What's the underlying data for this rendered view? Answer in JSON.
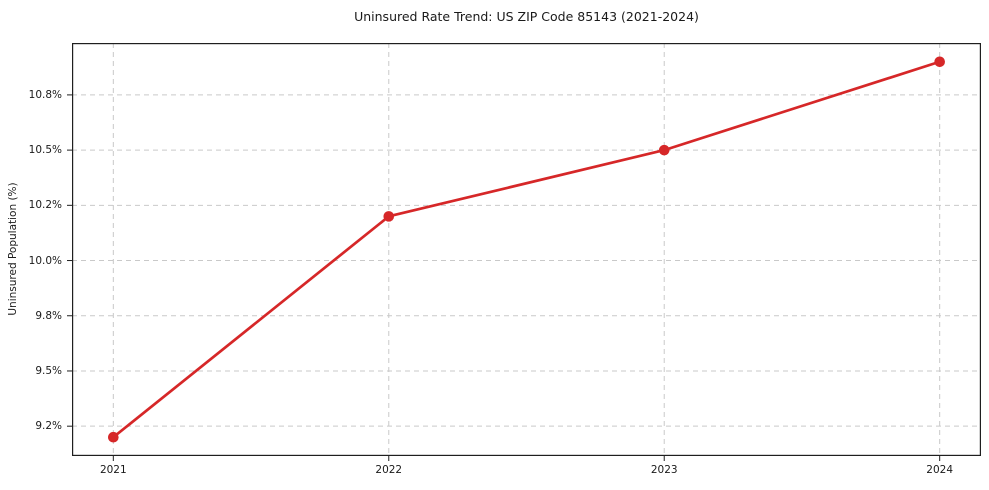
{
  "chart_data": {
    "type": "line",
    "title": "Uninsured Rate Trend: US ZIP Code 85143 (2021-2024)",
    "xlabel": "",
    "ylabel": "Uninsured Population (%)",
    "categories": [
      2021,
      2022,
      2023,
      2024
    ],
    "values": [
      9.2,
      10.2,
      10.5,
      10.9
    ],
    "units": "percent",
    "line_color": "#d62728",
    "marker": "circle",
    "marker_color": "#d62728",
    "grid": true,
    "grid_style": "dashed",
    "grid_color": "#c9c9c9",
    "spine_color": "#1f1f1f",
    "background_color": "#ffffff",
    "legend": "none",
    "xlim": [
      2020.85,
      2024.15
    ],
    "ylim": [
      9.115,
      10.985
    ],
    "xticks": [
      {
        "value": 2021,
        "label": "2021"
      },
      {
        "value": 2022,
        "label": "2022"
      },
      {
        "value": 2023,
        "label": "2023"
      },
      {
        "value": 2024,
        "label": "2024"
      }
    ],
    "yticks": [
      {
        "value": 9.25,
        "label": "9.2%"
      },
      {
        "value": 9.5,
        "label": "9.5%"
      },
      {
        "value": 9.75,
        "label": "9.8%"
      },
      {
        "value": 10.0,
        "label": "10.0%"
      },
      {
        "value": 10.25,
        "label": "10.2%"
      },
      {
        "value": 10.5,
        "label": "10.5%"
      },
      {
        "value": 10.75,
        "label": "10.8%"
      }
    ]
  }
}
